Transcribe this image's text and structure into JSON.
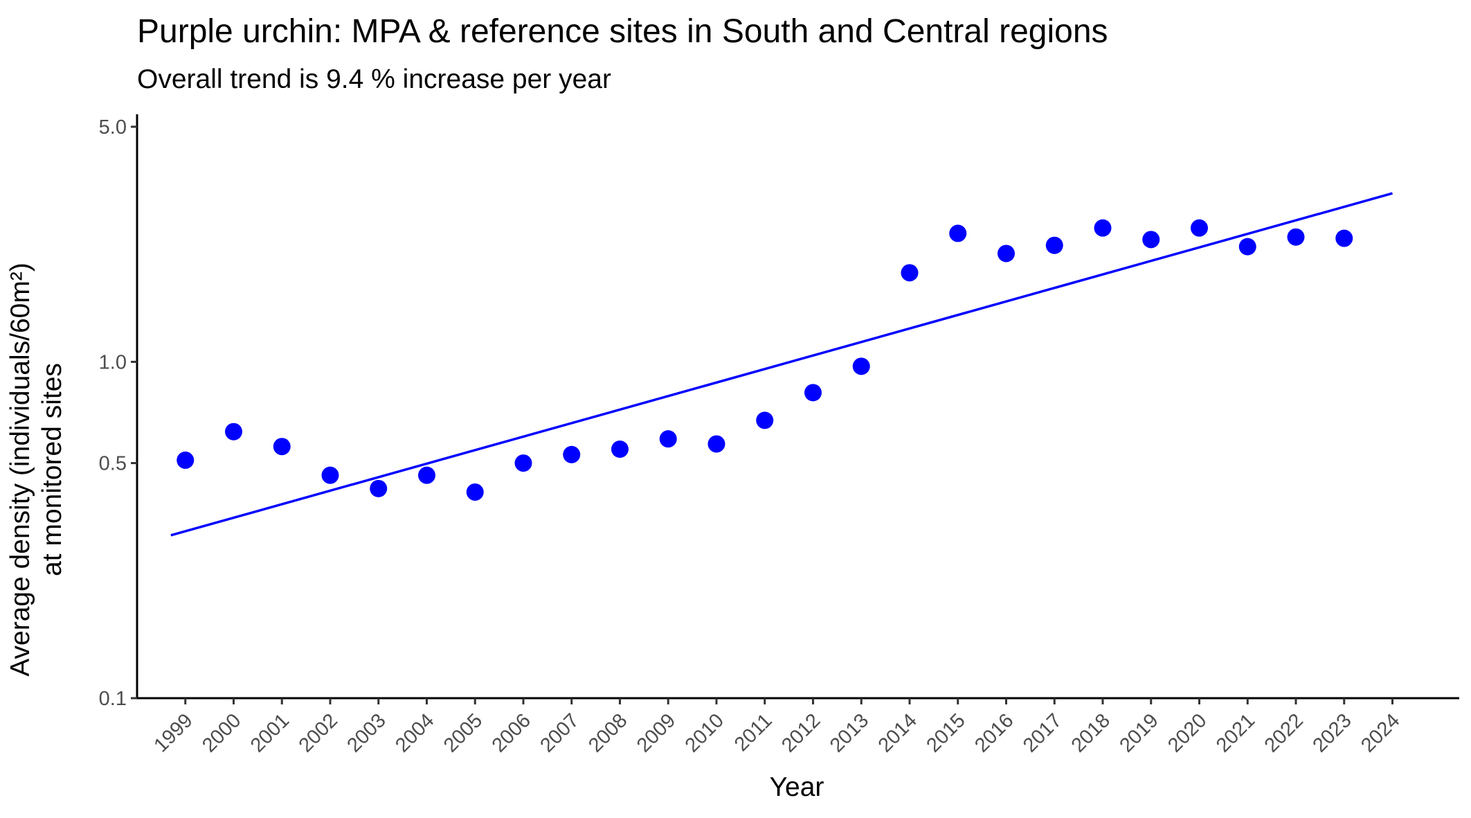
{
  "chart_data": {
    "type": "scatter",
    "title": "Purple urchin: MPA & reference sites in South and Central regions",
    "subtitle": "Overall trend is 9.4 % increase per year",
    "xlabel": "Year",
    "ylabel_line1": "Average density (individuals/60m²)",
    "ylabel_line2": "at monitored sites",
    "y_scale": "log10",
    "ylim": [
      0.1,
      5.0
    ],
    "xlim": [
      1998,
      2025
    ],
    "y_ticks": [
      {
        "value": 0.1,
        "label": "0.1"
      },
      {
        "value": 0.5,
        "label": "0.5"
      },
      {
        "value": 1.0,
        "label": "1.0"
      },
      {
        "value": 5.0,
        "label": "5.0"
      }
    ],
    "x_ticks": [
      "1999",
      "2000",
      "2001",
      "2002",
      "2003",
      "2004",
      "2005",
      "2006",
      "2007",
      "2008",
      "2009",
      "2010",
      "2011",
      "2012",
      "2013",
      "2014",
      "2015",
      "2016",
      "2017",
      "2018",
      "2019",
      "2020",
      "2021",
      "2022",
      "2023",
      "2024"
    ],
    "grid": false,
    "legend": "none",
    "series": [
      {
        "kind": "points",
        "color": "#0000ff",
        "x": [
          1999,
          2000,
          2001,
          2002,
          2003,
          2004,
          2005,
          2006,
          2007,
          2008,
          2009,
          2010,
          2011,
          2012,
          2013,
          2014,
          2015,
          2016,
          2017,
          2018,
          2019,
          2020,
          2021,
          2022,
          2023
        ],
        "y": [
          0.51,
          0.62,
          0.56,
          0.46,
          0.42,
          0.46,
          0.41,
          0.5,
          0.53,
          0.55,
          0.59,
          0.57,
          0.67,
          0.81,
          0.97,
          1.84,
          2.41,
          2.1,
          2.22,
          2.5,
          2.31,
          2.5,
          2.2,
          2.35,
          2.33
        ]
      },
      {
        "kind": "trend-line",
        "color": "#0000ff",
        "x": [
          1998.7,
          2024.0
        ],
        "y": [
          0.305,
          3.17
        ]
      }
    ]
  }
}
